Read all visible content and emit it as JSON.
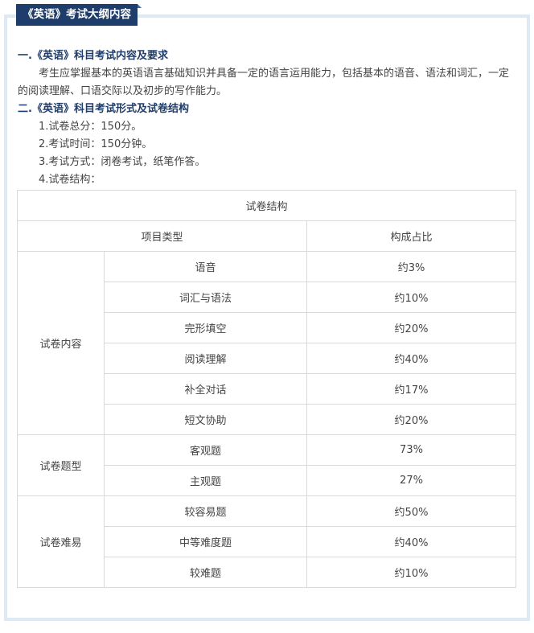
{
  "title": "《英语》考试大纲内容",
  "section1": {
    "heading": "一.《英语》科目考试内容及要求",
    "paragraph": "考生应掌握基本的英语语言基础知识并具备一定的语言运用能力，包括基本的语音、语法和词汇，一定的阅读理解、口语交际以及初步的写作能力。"
  },
  "section2": {
    "heading": "二.《英语》科目考试形式及试卷结构",
    "items": [
      "1.试卷总分：150分。",
      "2.考试时间：150分钟。",
      "3.考试方式：闭卷考试，纸笔作答。",
      "4.试卷结构："
    ]
  },
  "table": {
    "caption": "试卷结构",
    "headers": [
      "项目类型",
      "构成占比"
    ],
    "groups": [
      {
        "name": "试卷内容",
        "rows": [
          [
            "语音",
            "约3%"
          ],
          [
            "词汇与语法",
            "约10%"
          ],
          [
            "完形填空",
            "约20%"
          ],
          [
            "阅读理解",
            "约40%"
          ],
          [
            "补全对话",
            "约17%"
          ],
          [
            "短文协助",
            "约20%"
          ]
        ]
      },
      {
        "name": "试卷题型",
        "rows": [
          [
            "客观题",
            "73%"
          ],
          [
            "主观题",
            "27%"
          ]
        ]
      },
      {
        "name": "试卷难易",
        "rows": [
          [
            "较容易题",
            "约50%"
          ],
          [
            "中等难度题",
            "约40%"
          ],
          [
            "较难题",
            "约10%"
          ]
        ]
      }
    ]
  },
  "colors": {
    "accent": "#1f3d6b",
    "frame": "#dde9f5"
  }
}
